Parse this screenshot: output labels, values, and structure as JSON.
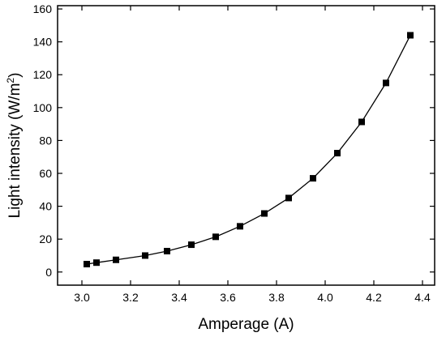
{
  "chart_data": {
    "type": "line",
    "title": "",
    "xlabel": "Amperage (A)",
    "ylabel_main": "Light intensity (W/m",
    "ylabel_sup": "2",
    "ylabel_close": ")",
    "xlim": [
      2.9,
      4.45
    ],
    "ylim": [
      -8,
      162
    ],
    "xticks": [
      3.0,
      3.2,
      3.4,
      3.6,
      3.8,
      4.0,
      4.2,
      4.4
    ],
    "xtick_labels": [
      "3.0",
      "3.2",
      "3.4",
      "3.6",
      "3.8",
      "4.0",
      "4.2",
      "4.4"
    ],
    "yticks": [
      0,
      20,
      40,
      60,
      80,
      100,
      120,
      140,
      160
    ],
    "ytick_labels": [
      "0",
      "20",
      "40",
      "60",
      "80",
      "100",
      "120",
      "140",
      "160"
    ],
    "grid": false,
    "legend": "none",
    "colors": {
      "line": "#000000",
      "marker": "#000000",
      "axis": "#000000"
    },
    "series": [
      {
        "marker": "square",
        "points": [
          {
            "x": 3.02,
            "y": 4.8
          },
          {
            "x": 3.06,
            "y": 5.7
          },
          {
            "x": 3.14,
            "y": 7.4
          },
          {
            "x": 3.26,
            "y": 10.0
          },
          {
            "x": 3.35,
            "y": 12.7
          },
          {
            "x": 3.45,
            "y": 16.6
          },
          {
            "x": 3.55,
            "y": 21.4
          },
          {
            "x": 3.65,
            "y": 27.8
          },
          {
            "x": 3.75,
            "y": 35.6
          },
          {
            "x": 3.85,
            "y": 45.0
          },
          {
            "x": 3.95,
            "y": 57.0
          },
          {
            "x": 4.05,
            "y": 72.3
          },
          {
            "x": 4.15,
            "y": 91.3
          },
          {
            "x": 4.25,
            "y": 115.0
          },
          {
            "x": 4.35,
            "y": 144.0
          }
        ]
      }
    ]
  }
}
